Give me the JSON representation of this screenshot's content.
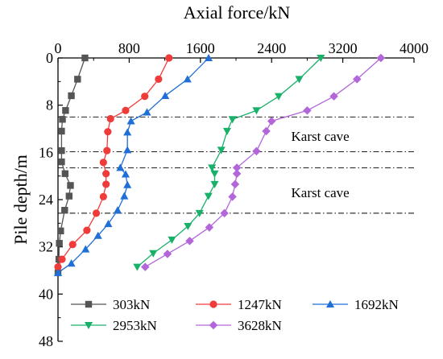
{
  "chart_data": {
    "type": "line",
    "xlabel": "Axial force/kN",
    "ylabel": "Pile depth/m",
    "xlim": [
      0,
      4000
    ],
    "ylim": [
      0,
      48
    ],
    "y_inverted": true,
    "x_axis_position": "top",
    "x_ticks": [
      0,
      800,
      1600,
      2400,
      3200,
      4000
    ],
    "y_ticks": [
      0,
      8,
      16,
      24,
      32,
      40,
      48
    ],
    "grid": false,
    "legend_position": "bottom",
    "reference_lines": [
      {
        "y": 10.0,
        "style": "dash-dot"
      },
      {
        "y": 15.9,
        "style": "dash-dot"
      },
      {
        "y": 18.6,
        "style": "dash-dot"
      },
      {
        "y": 26.3,
        "style": "dash-dot"
      }
    ],
    "annotations": [
      {
        "text": "Karst cave",
        "x": 2620,
        "y": 13.2
      },
      {
        "text": "Karst cave",
        "x": 2620,
        "y": 22.8
      }
    ],
    "series": [
      {
        "name": "303kN",
        "color": "#555555",
        "marker": "square",
        "points": [
          [
            303,
            0
          ],
          [
            220,
            3.6
          ],
          [
            150,
            6.4
          ],
          [
            85,
            8.9
          ],
          [
            50,
            10.4
          ],
          [
            40,
            12.4
          ],
          [
            40,
            15.7
          ],
          [
            40,
            17.6
          ],
          [
            80,
            19.6
          ],
          [
            140,
            21.6
          ],
          [
            125,
            23.4
          ],
          [
            75,
            25.8
          ],
          [
            30,
            29.3
          ],
          [
            15,
            31.4
          ],
          [
            10,
            34.1
          ],
          [
            0,
            36.4
          ]
        ]
      },
      {
        "name": "1247kN",
        "color": "#f03b3b",
        "marker": "circle",
        "points": [
          [
            1247,
            0
          ],
          [
            1130,
            3.6
          ],
          [
            975,
            6.5
          ],
          [
            760,
            8.9
          ],
          [
            590,
            10.3
          ],
          [
            560,
            12.5
          ],
          [
            550,
            15.7
          ],
          [
            510,
            17.7
          ],
          [
            540,
            19.6
          ],
          [
            540,
            21.4
          ],
          [
            510,
            23.5
          ],
          [
            430,
            26.3
          ],
          [
            325,
            29.2
          ],
          [
            165,
            31.6
          ],
          [
            45,
            34.1
          ],
          [
            0,
            35.4
          ]
        ]
      },
      {
        "name": "1692kN",
        "color": "#1f6fd6",
        "marker": "triangle-up",
        "points": [
          [
            1692,
            0
          ],
          [
            1455,
            3.6
          ],
          [
            1205,
            6.4
          ],
          [
            1000,
            9.2
          ],
          [
            820,
            10.7
          ],
          [
            780,
            12.6
          ],
          [
            780,
            15.6
          ],
          [
            700,
            18.6
          ],
          [
            760,
            19.7
          ],
          [
            780,
            21.5
          ],
          [
            745,
            23.4
          ],
          [
            670,
            25.8
          ],
          [
            565,
            28.1
          ],
          [
            450,
            30.1
          ],
          [
            310,
            32.4
          ],
          [
            150,
            34.8
          ],
          [
            0,
            36.4
          ]
        ]
      },
      {
        "name": "2953kN",
        "color": "#19b06a",
        "marker": "triangle-down",
        "points": [
          [
            2953,
            0
          ],
          [
            2710,
            3.6
          ],
          [
            2480,
            6.5
          ],
          [
            2230,
            8.9
          ],
          [
            1960,
            10.4
          ],
          [
            1900,
            12.4
          ],
          [
            1835,
            15.6
          ],
          [
            1730,
            18.6
          ],
          [
            1760,
            19.6
          ],
          [
            1760,
            21.4
          ],
          [
            1690,
            23.4
          ],
          [
            1590,
            26.3
          ],
          [
            1460,
            28.5
          ],
          [
            1280,
            30.8
          ],
          [
            1070,
            33.1
          ],
          [
            890,
            35.4
          ]
        ]
      },
      {
        "name": "3628kN",
        "color": "#b266d9",
        "marker": "diamond",
        "points": [
          [
            3628,
            0
          ],
          [
            3360,
            3.6
          ],
          [
            3100,
            6.5
          ],
          [
            2800,
            8.9
          ],
          [
            2400,
            10.7
          ],
          [
            2340,
            12.4
          ],
          [
            2230,
            15.8
          ],
          [
            2010,
            18.6
          ],
          [
            2010,
            19.6
          ],
          [
            1990,
            21.4
          ],
          [
            1960,
            23.5
          ],
          [
            1870,
            26.3
          ],
          [
            1700,
            28.7
          ],
          [
            1480,
            31.0
          ],
          [
            1230,
            33.2
          ],
          [
            980,
            35.4
          ]
        ]
      }
    ]
  }
}
